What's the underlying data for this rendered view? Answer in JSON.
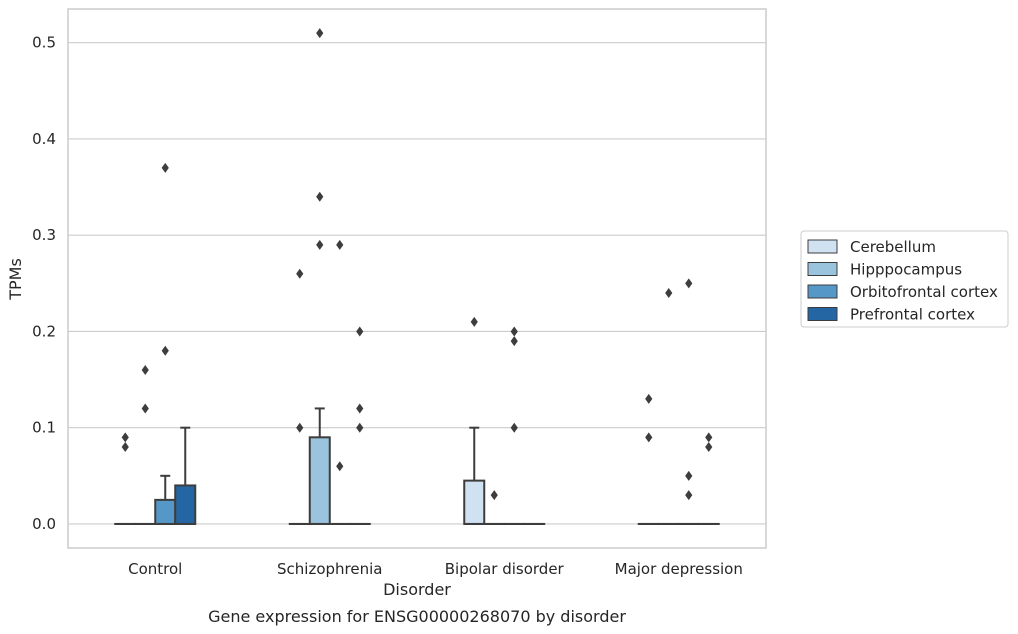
{
  "chart_data": {
    "type": "box",
    "title": "",
    "caption": "Gene expression for ENSG00000268070 by disorder",
    "xlabel": "Disorder",
    "ylabel": "TPMs",
    "ylim": [
      -0.025,
      0.535
    ],
    "yticks": [
      "0.0",
      "0.1",
      "0.2",
      "0.3",
      "0.4",
      "0.5"
    ],
    "grid": "horizontal",
    "legend_position": "right",
    "categories": [
      "Control",
      "Schizophrenia",
      "Bipolar disorder",
      "Major depression"
    ],
    "series": [
      {
        "name": "Cerebellum",
        "color": "#d0e1f2",
        "boxes": [
          {
            "q1": 0,
            "median": 0,
            "q3": 0,
            "whisker_low": 0,
            "whisker_high": 0,
            "outliers": [
              0.09,
              0.08
            ]
          },
          {
            "q1": 0,
            "median": 0,
            "q3": 0,
            "whisker_low": 0,
            "whisker_high": 0,
            "outliers": [
              0.26,
              0.1
            ]
          },
          {
            "q1": 0,
            "median": 0,
            "q3": 0.045,
            "whisker_low": 0,
            "whisker_high": 0.1,
            "outliers": [
              0.21
            ]
          },
          {
            "q1": 0,
            "median": 0,
            "q3": 0,
            "whisker_low": 0,
            "whisker_high": 0,
            "outliers": [
              0.13,
              0.09
            ]
          }
        ]
      },
      {
        "name": "Hipppocampus",
        "color": "#9ac3dd",
        "boxes": [
          {
            "q1": 0,
            "median": 0,
            "q3": 0,
            "whisker_low": 0,
            "whisker_high": 0,
            "outliers": [
              0.16,
              0.12
            ]
          },
          {
            "q1": 0,
            "median": 0,
            "q3": 0.09,
            "whisker_low": 0,
            "whisker_high": 0.12,
            "outliers": [
              0.51,
              0.34,
              0.29
            ]
          },
          {
            "q1": 0,
            "median": 0,
            "q3": 0,
            "whisker_low": 0,
            "whisker_high": 0,
            "outliers": [
              0.03
            ]
          },
          {
            "q1": 0,
            "median": 0,
            "q3": 0,
            "whisker_low": 0,
            "whisker_high": 0,
            "outliers": [
              0.24
            ]
          }
        ]
      },
      {
        "name": "Orbitofrontal cortex",
        "color": "#5598c8",
        "boxes": [
          {
            "q1": 0,
            "median": 0,
            "q3": 0.025,
            "whisker_low": 0,
            "whisker_high": 0.05,
            "outliers": [
              0.37,
              0.18
            ]
          },
          {
            "q1": 0,
            "median": 0,
            "q3": 0,
            "whisker_low": 0,
            "whisker_high": 0,
            "outliers": [
              0.29,
              0.06
            ]
          },
          {
            "q1": 0,
            "median": 0,
            "q3": 0,
            "whisker_low": 0,
            "whisker_high": 0,
            "outliers": [
              0.2,
              0.19,
              0.1
            ]
          },
          {
            "q1": 0,
            "median": 0,
            "q3": 0,
            "whisker_low": 0,
            "whisker_high": 0,
            "outliers": [
              0.25,
              0.05,
              0.03
            ]
          }
        ]
      },
      {
        "name": "Prefrontal cortex",
        "color": "#2466a4",
        "boxes": [
          {
            "q1": 0,
            "median": 0,
            "q3": 0.04,
            "whisker_low": 0,
            "whisker_high": 0.1,
            "outliers": []
          },
          {
            "q1": 0,
            "median": 0,
            "q3": 0,
            "whisker_low": 0,
            "whisker_high": 0,
            "outliers": [
              0.2,
              0.12,
              0.1
            ]
          },
          {
            "q1": 0,
            "median": 0,
            "q3": 0,
            "whisker_low": 0,
            "whisker_high": 0,
            "outliers": []
          },
          {
            "q1": 0,
            "median": 0,
            "q3": 0,
            "whisker_low": 0,
            "whisker_high": 0,
            "outliers": [
              0.09,
              0.08
            ]
          }
        ]
      }
    ]
  }
}
